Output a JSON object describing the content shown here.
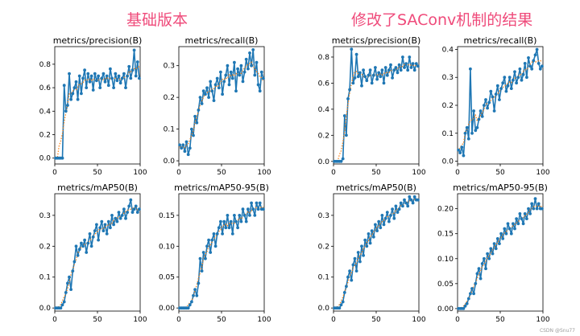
{
  "headings": {
    "left": "基础版本",
    "right": "修改了SAConv机制的结果"
  },
  "watermark": "CSDN @Snu77",
  "colors": {
    "series": "#1f77b4",
    "smooth": "#ff7f0e",
    "heading": "#ef4a7a"
  },
  "chart_data": [
    {
      "type": "line",
      "title": "metrics/precision(B)",
      "xlim": [
        0,
        100
      ],
      "ylim": [
        -0.05,
        0.95
      ],
      "xticks": [
        0,
        50,
        100
      ],
      "yticks": [
        0.0,
        0.2,
        0.4,
        0.6,
        0.8
      ],
      "ytick_labels": [
        "0.0",
        "0.2",
        "0.4",
        "0.6",
        "0.8"
      ],
      "x": [
        1,
        3,
        5,
        7,
        9,
        11,
        13,
        15,
        17,
        19,
        21,
        23,
        25,
        27,
        29,
        31,
        33,
        35,
        37,
        39,
        41,
        43,
        45,
        47,
        49,
        51,
        53,
        55,
        57,
        59,
        61,
        63,
        65,
        67,
        69,
        71,
        73,
        75,
        77,
        79,
        81,
        83,
        85,
        87,
        89,
        91,
        93,
        95,
        97,
        99
      ],
      "y": [
        0.0,
        0.0,
        0.0,
        0.0,
        0.0,
        0.62,
        0.4,
        0.45,
        0.72,
        0.5,
        0.55,
        0.6,
        0.65,
        0.5,
        0.7,
        0.55,
        0.68,
        0.75,
        0.6,
        0.72,
        0.65,
        0.7,
        0.58,
        0.72,
        0.66,
        0.7,
        0.6,
        0.68,
        0.72,
        0.65,
        0.7,
        0.62,
        0.76,
        0.68,
        0.6,
        0.72,
        0.66,
        0.7,
        0.64,
        0.68,
        0.72,
        0.6,
        0.7,
        0.78,
        0.68,
        0.75,
        0.92,
        0.7,
        0.82,
        0.68
      ]
    },
    {
      "type": "line",
      "title": "metrics/recall(B)",
      "xlim": [
        0,
        100
      ],
      "ylim": [
        -0.01,
        0.36
      ],
      "xticks": [
        0,
        50,
        100
      ],
      "yticks": [
        0.0,
        0.1,
        0.2,
        0.3
      ],
      "ytick_labels": [
        "0.0",
        "0.1",
        "0.2",
        "0.3"
      ],
      "x": [
        1,
        3,
        5,
        7,
        9,
        11,
        13,
        15,
        17,
        19,
        21,
        23,
        25,
        27,
        29,
        31,
        33,
        35,
        37,
        39,
        41,
        43,
        45,
        47,
        49,
        51,
        53,
        55,
        57,
        59,
        61,
        63,
        65,
        67,
        69,
        71,
        73,
        75,
        77,
        79,
        81,
        83,
        85,
        87,
        89,
        91,
        93,
        95,
        97,
        99
      ],
      "y": [
        0.05,
        0.04,
        0.05,
        0.03,
        0.06,
        0.02,
        0.04,
        0.1,
        0.08,
        0.14,
        0.12,
        0.16,
        0.2,
        0.18,
        0.22,
        0.21,
        0.23,
        0.2,
        0.25,
        0.22,
        0.19,
        0.24,
        0.26,
        0.23,
        0.28,
        0.21,
        0.25,
        0.27,
        0.3,
        0.24,
        0.28,
        0.26,
        0.31,
        0.22,
        0.29,
        0.27,
        0.3,
        0.25,
        0.28,
        0.32,
        0.29,
        0.34,
        0.3,
        0.35,
        0.27,
        0.31,
        0.24,
        0.22,
        0.28,
        0.26
      ]
    },
    {
      "type": "line",
      "title": "metrics/mAP50(B)",
      "xlim": [
        0,
        100
      ],
      "ylim": [
        -0.01,
        0.37
      ],
      "xticks": [
        0,
        50,
        100
      ],
      "yticks": [
        0.0,
        0.1,
        0.2,
        0.3
      ],
      "ytick_labels": [
        "0.0",
        "0.1",
        "0.2",
        "0.3"
      ],
      "x": [
        1,
        3,
        5,
        7,
        9,
        11,
        13,
        15,
        17,
        19,
        21,
        23,
        25,
        27,
        29,
        31,
        33,
        35,
        37,
        39,
        41,
        43,
        45,
        47,
        49,
        51,
        53,
        55,
        57,
        59,
        61,
        63,
        65,
        67,
        69,
        71,
        73,
        75,
        77,
        79,
        81,
        83,
        85,
        87,
        89,
        91,
        93,
        95,
        97,
        99
      ],
      "y": [
        0.0,
        0.0,
        0.0,
        0.0,
        0.01,
        0.02,
        0.05,
        0.08,
        0.1,
        0.06,
        0.12,
        0.15,
        0.2,
        0.17,
        0.19,
        0.21,
        0.2,
        0.22,
        0.18,
        0.21,
        0.24,
        0.2,
        0.23,
        0.25,
        0.27,
        0.22,
        0.26,
        0.28,
        0.25,
        0.27,
        0.24,
        0.28,
        0.26,
        0.3,
        0.27,
        0.29,
        0.28,
        0.31,
        0.29,
        0.3,
        0.32,
        0.29,
        0.31,
        0.33,
        0.35,
        0.31,
        0.32,
        0.33,
        0.31,
        0.32
      ]
    },
    {
      "type": "line",
      "title": "metrics/mAP50-95(B)",
      "xlim": [
        0,
        100
      ],
      "ylim": [
        -0.005,
        0.185
      ],
      "xticks": [
        0,
        50,
        100
      ],
      "yticks": [
        0.0,
        0.05,
        0.1,
        0.15
      ],
      "ytick_labels": [
        "0.00",
        "0.05",
        "0.10",
        "0.15"
      ],
      "x": [
        1,
        3,
        5,
        7,
        9,
        11,
        13,
        15,
        17,
        19,
        21,
        23,
        25,
        27,
        29,
        31,
        33,
        35,
        37,
        39,
        41,
        43,
        45,
        47,
        49,
        51,
        53,
        55,
        57,
        59,
        61,
        63,
        65,
        67,
        69,
        71,
        73,
        75,
        77,
        79,
        81,
        83,
        85,
        87,
        89,
        91,
        93,
        95,
        97,
        99
      ],
      "y": [
        0.0,
        0.0,
        0.0,
        0.0,
        0.0,
        0.0,
        0.005,
        0.01,
        0.02,
        0.03,
        0.02,
        0.04,
        0.08,
        0.06,
        0.09,
        0.08,
        0.1,
        0.11,
        0.09,
        0.11,
        0.12,
        0.1,
        0.12,
        0.13,
        0.14,
        0.12,
        0.14,
        0.13,
        0.15,
        0.13,
        0.14,
        0.12,
        0.15,
        0.14,
        0.13,
        0.15,
        0.14,
        0.16,
        0.15,
        0.14,
        0.16,
        0.15,
        0.17,
        0.16,
        0.15,
        0.17,
        0.16,
        0.17,
        0.16,
        0.16
      ]
    },
    {
      "type": "line",
      "title": "metrics/precision(B)",
      "xlim": [
        0,
        100
      ],
      "ylim": [
        -0.02,
        0.88
      ],
      "xticks": [
        0,
        50,
        100
      ],
      "yticks": [
        0.0,
        0.2,
        0.4,
        0.6,
        0.8
      ],
      "ytick_labels": [
        "0.0",
        "0.2",
        "0.4",
        "0.6",
        "0.8"
      ],
      "x": [
        1,
        3,
        5,
        7,
        9,
        11,
        13,
        15,
        17,
        19,
        21,
        23,
        25,
        27,
        29,
        31,
        33,
        35,
        37,
        39,
        41,
        43,
        45,
        47,
        49,
        51,
        53,
        55,
        57,
        59,
        61,
        63,
        65,
        67,
        69,
        71,
        73,
        75,
        77,
        79,
        81,
        83,
        85,
        87,
        89,
        91,
        93,
        95,
        97,
        99
      ],
      "y": [
        0.0,
        0.0,
        0.0,
        0.0,
        0.0,
        0.02,
        0.35,
        0.2,
        0.48,
        0.55,
        0.86,
        0.6,
        0.64,
        0.82,
        0.65,
        0.68,
        0.58,
        0.7,
        0.65,
        0.62,
        0.66,
        0.7,
        0.6,
        0.66,
        0.72,
        0.63,
        0.68,
        0.65,
        0.7,
        0.6,
        0.72,
        0.66,
        0.7,
        0.74,
        0.64,
        0.7,
        0.72,
        0.68,
        0.74,
        0.7,
        0.8,
        0.72,
        0.75,
        0.7,
        0.8,
        0.72,
        0.75,
        0.7,
        0.75,
        0.73
      ]
    },
    {
      "type": "line",
      "title": "metrics/recall(B)",
      "xlim": [
        0,
        100
      ],
      "ylim": [
        -0.01,
        0.41
      ],
      "xticks": [
        0,
        50,
        100
      ],
      "yticks": [
        0.0,
        0.1,
        0.2,
        0.3,
        0.4
      ],
      "ytick_labels": [
        "0.0",
        "0.1",
        "0.2",
        "0.3",
        "0.4"
      ],
      "x": [
        1,
        3,
        5,
        7,
        9,
        11,
        13,
        15,
        17,
        19,
        21,
        23,
        25,
        27,
        29,
        31,
        33,
        35,
        37,
        39,
        41,
        43,
        45,
        47,
        49,
        51,
        53,
        55,
        57,
        59,
        61,
        63,
        65,
        67,
        69,
        71,
        73,
        75,
        77,
        79,
        81,
        83,
        85,
        87,
        89,
        91,
        93,
        95,
        97,
        99
      ],
      "y": [
        0.04,
        0.03,
        0.05,
        0.02,
        0.1,
        0.12,
        0.08,
        0.33,
        0.1,
        0.18,
        0.11,
        0.12,
        0.15,
        0.18,
        0.16,
        0.2,
        0.22,
        0.19,
        0.21,
        0.25,
        0.23,
        0.18,
        0.24,
        0.27,
        0.22,
        0.26,
        0.28,
        0.3,
        0.25,
        0.27,
        0.3,
        0.26,
        0.29,
        0.32,
        0.28,
        0.3,
        0.33,
        0.29,
        0.31,
        0.35,
        0.3,
        0.37,
        0.34,
        0.33,
        0.36,
        0.38,
        0.4,
        0.35,
        0.33,
        0.34
      ]
    },
    {
      "type": "line",
      "title": "metrics/mAP50(B)",
      "xlim": [
        0,
        100
      ],
      "ylim": [
        -0.01,
        0.37
      ],
      "xticks": [
        0,
        50,
        100
      ],
      "yticks": [
        0.0,
        0.1,
        0.2,
        0.3
      ],
      "ytick_labels": [
        "0.0",
        "0.1",
        "0.2",
        "0.3"
      ],
      "x": [
        1,
        3,
        5,
        7,
        9,
        11,
        13,
        15,
        17,
        19,
        21,
        23,
        25,
        27,
        29,
        31,
        33,
        35,
        37,
        39,
        41,
        43,
        45,
        47,
        49,
        51,
        53,
        55,
        57,
        59,
        61,
        63,
        65,
        67,
        69,
        71,
        73,
        75,
        77,
        79,
        81,
        83,
        85,
        87,
        89,
        91,
        93,
        95,
        97,
        99
      ],
      "y": [
        0.0,
        0.0,
        0.0,
        0.0,
        0.01,
        0.02,
        0.05,
        0.07,
        0.1,
        0.12,
        0.09,
        0.14,
        0.16,
        0.12,
        0.18,
        0.15,
        0.2,
        0.17,
        0.22,
        0.2,
        0.24,
        0.21,
        0.25,
        0.23,
        0.27,
        0.25,
        0.28,
        0.26,
        0.3,
        0.27,
        0.29,
        0.31,
        0.28,
        0.3,
        0.32,
        0.29,
        0.33,
        0.31,
        0.32,
        0.34,
        0.33,
        0.35,
        0.34,
        0.33,
        0.36,
        0.35,
        0.34,
        0.36,
        0.35,
        0.35
      ]
    },
    {
      "type": "line",
      "title": "metrics/mAP50-95(B)",
      "xlim": [
        0,
        100
      ],
      "ylim": [
        -0.005,
        0.23
      ],
      "xticks": [
        0,
        50,
        100
      ],
      "yticks": [
        0.0,
        0.05,
        0.1,
        0.15,
        0.2
      ],
      "ytick_labels": [
        "0.00",
        "0.05",
        "0.10",
        "0.15",
        "0.20"
      ],
      "x": [
        1,
        3,
        5,
        7,
        9,
        11,
        13,
        15,
        17,
        19,
        21,
        23,
        25,
        27,
        29,
        31,
        33,
        35,
        37,
        39,
        41,
        43,
        45,
        47,
        49,
        51,
        53,
        55,
        57,
        59,
        61,
        63,
        65,
        67,
        69,
        71,
        73,
        75,
        77,
        79,
        81,
        83,
        85,
        87,
        89,
        91,
        93,
        95,
        97,
        99
      ],
      "y": [
        0.0,
        0.0,
        0.0,
        0.0,
        0.005,
        0.01,
        0.02,
        0.03,
        0.04,
        0.03,
        0.05,
        0.07,
        0.08,
        0.06,
        0.09,
        0.1,
        0.08,
        0.11,
        0.1,
        0.12,
        0.11,
        0.13,
        0.12,
        0.14,
        0.13,
        0.15,
        0.14,
        0.16,
        0.15,
        0.17,
        0.16,
        0.15,
        0.17,
        0.16,
        0.18,
        0.17,
        0.19,
        0.18,
        0.17,
        0.19,
        0.18,
        0.2,
        0.19,
        0.21,
        0.2,
        0.22,
        0.2,
        0.21,
        0.2,
        0.2
      ]
    }
  ]
}
